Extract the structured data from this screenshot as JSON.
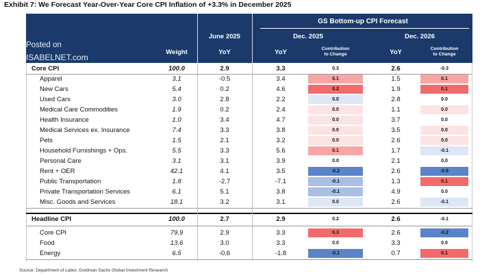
{
  "title": "Exhibit 7: We Forecast Year-Over-Year Core CPI Inflation of +3.3% in December 2025",
  "watermark": {
    "line1": "Posted on",
    "line2": "ISABELNET.com"
  },
  "header": {
    "group_title": "GS Bottom-up CPI Forecast",
    "weight": "Weight",
    "june_title": "June 2025",
    "june_sub": "YoY",
    "dec25_title": "Dec. 2025",
    "dec25_yoy": "YoY",
    "dec25_contrib_1": "Contribution",
    "dec25_contrib_2": "to Change",
    "dec26_title": "Dec. 2026",
    "dec26_yoy": "YoY",
    "dec26_contrib_1": "Contribution",
    "dec26_contrib_2": "to Change"
  },
  "colors": {
    "header_bg": "#1b3a6b",
    "pos_strong": "#f26b6b",
    "pos_mid": "#f7a5a5",
    "pos_light": "#fbe3e3",
    "neg_strong": "#5b84c8",
    "neg_mid": "#a8bfe6",
    "neg_light": "#dde6f5"
  },
  "rows": [
    {
      "label": "Core CPI",
      "weight": "100.0",
      "june": "2.9",
      "dec25": "3.3",
      "c25": "0.3",
      "c25s": "none",
      "dec26": "2.6",
      "c26": "-0.3",
      "c26s": "none",
      "bold": true,
      "indent": 0
    },
    {
      "label": "Apparel",
      "weight": "3.1",
      "june": "-0.5",
      "dec25": "3.4",
      "c25": "0.1",
      "c25s": "pos_mid",
      "dec26": "1.5",
      "c26": "0.1",
      "c26s": "pos_mid",
      "bold": false,
      "indent": 1
    },
    {
      "label": "New Cars",
      "weight": "5.4",
      "june": "0.2",
      "dec25": "4.6",
      "c25": "0.2",
      "c25s": "pos_strong",
      "dec26": "1.9",
      "c26": "0.1",
      "c26s": "pos_strong",
      "bold": false,
      "indent": 1
    },
    {
      "label": "Used Cars",
      "weight": "3.0",
      "june": "2.8",
      "dec25": "2.2",
      "c25": "0.0",
      "c25s": "neg_light",
      "dec26": "2.8",
      "c26": "0.0",
      "c26s": "none",
      "bold": false,
      "indent": 1
    },
    {
      "label": "Medical Care Commodities",
      "weight": "1.9",
      "june": "0.2",
      "dec25": "2.4",
      "c25": "0.0",
      "c25s": "pos_light",
      "dec26": "1.1",
      "c26": "0.0",
      "c26s": "pos_light",
      "bold": false,
      "indent": 1
    },
    {
      "label": "Health Insurance",
      "weight": "1.0",
      "june": "3.4",
      "dec25": "4.7",
      "c25": "0.0",
      "c25s": "pos_light",
      "dec26": "3.7",
      "c26": "0.0",
      "c26s": "none",
      "bold": false,
      "indent": 1
    },
    {
      "label": "Medical Services ex. Insurance",
      "weight": "7.4",
      "june": "3.3",
      "dec25": "3.8",
      "c25": "0.0",
      "c25s": "pos_light",
      "dec26": "3.5",
      "c26": "0.0",
      "c26s": "pos_light",
      "bold": false,
      "indent": 1
    },
    {
      "label": "Pets",
      "weight": "1.5",
      "june": "2.1",
      "dec25": "3.2",
      "c25": "0.0",
      "c25s": "pos_light",
      "dec26": "2.6",
      "c26": "0.0",
      "c26s": "pos_light",
      "bold": false,
      "indent": 1
    },
    {
      "label": "Household Furnishings + Ops.",
      "weight": "5.5",
      "june": "3.3",
      "dec25": "5.6",
      "c25": "0.1",
      "c25s": "pos_mid",
      "dec26": "1.7",
      "c26": "-0.1",
      "c26s": "neg_light",
      "bold": false,
      "indent": 1
    },
    {
      "label": "Personal Care",
      "weight": "3.1",
      "june": "3.1",
      "dec25": "3.9",
      "c25": "0.0",
      "c25s": "none",
      "dec26": "2.1",
      "c26": "0.0",
      "c26s": "none",
      "bold": false,
      "indent": 1
    },
    {
      "label": "Rent + OER",
      "weight": "42.1",
      "june": "4.1",
      "dec25": "3.5",
      "c25": "-0.2",
      "c25s": "neg_strong",
      "dec26": "2.6",
      "c26": "-0.6",
      "c26s": "neg_strong",
      "bold": false,
      "indent": 1
    },
    {
      "label": "Public Transportation",
      "weight": "1.8",
      "june": "-2.7",
      "dec25": "-7.1",
      "c25": "-0.1",
      "c25s": "neg_mid",
      "dec26": "1.3",
      "c26": "0.1",
      "c26s": "pos_strong",
      "bold": false,
      "indent": 1
    },
    {
      "label": "Private Transportation Services",
      "weight": "6.1",
      "june": "5.1",
      "dec25": "3.8",
      "c25": "-0.1",
      "c25s": "neg_mid",
      "dec26": "4.9",
      "c26": "0.0",
      "c26s": "none",
      "bold": false,
      "indent": 1
    },
    {
      "label": "Misc. Goods and Services",
      "weight": "18.1",
      "june": "3.2",
      "dec25": "3.1",
      "c25": "0.0",
      "c25s": "neg_light",
      "dec26": "2.6",
      "c26": "-0.1",
      "c26s": "neg_light",
      "bold": false,
      "indent": 1
    },
    {
      "label": "Headline CPI",
      "weight": "100.0",
      "june": "2.7",
      "dec25": "2.9",
      "c25": "0.2",
      "c25s": "none",
      "dec26": "2.6",
      "c26": "-0.1",
      "c26s": "none",
      "bold": true,
      "indent": 0
    },
    {
      "label": "Core CPI",
      "weight": "79.9",
      "june": "2.9",
      "dec25": "3.3",
      "c25": "0.3",
      "c25s": "pos_strong",
      "dec26": "2.6",
      "c26": "-0.2",
      "c26s": "neg_strong",
      "bold": false,
      "indent": 1
    },
    {
      "label": "Food",
      "weight": "13.6",
      "june": "3.0",
      "dec25": "3.3",
      "c25": "0.0",
      "c25s": "none",
      "dec26": "3.3",
      "c26": "0.0",
      "c26s": "none",
      "bold": false,
      "indent": 1
    },
    {
      "label": "Energy",
      "weight": "6.5",
      "june": "-0.6",
      "dec25": "-1.8",
      "c25": "-0.1",
      "c25s": "neg_strong",
      "dec26": "0.7",
      "c26": "0.1",
      "c26s": "pos_strong",
      "bold": false,
      "indent": 1
    }
  ],
  "source": "Source: Department of Labor, Goldman Sachs Global Investment Research"
}
